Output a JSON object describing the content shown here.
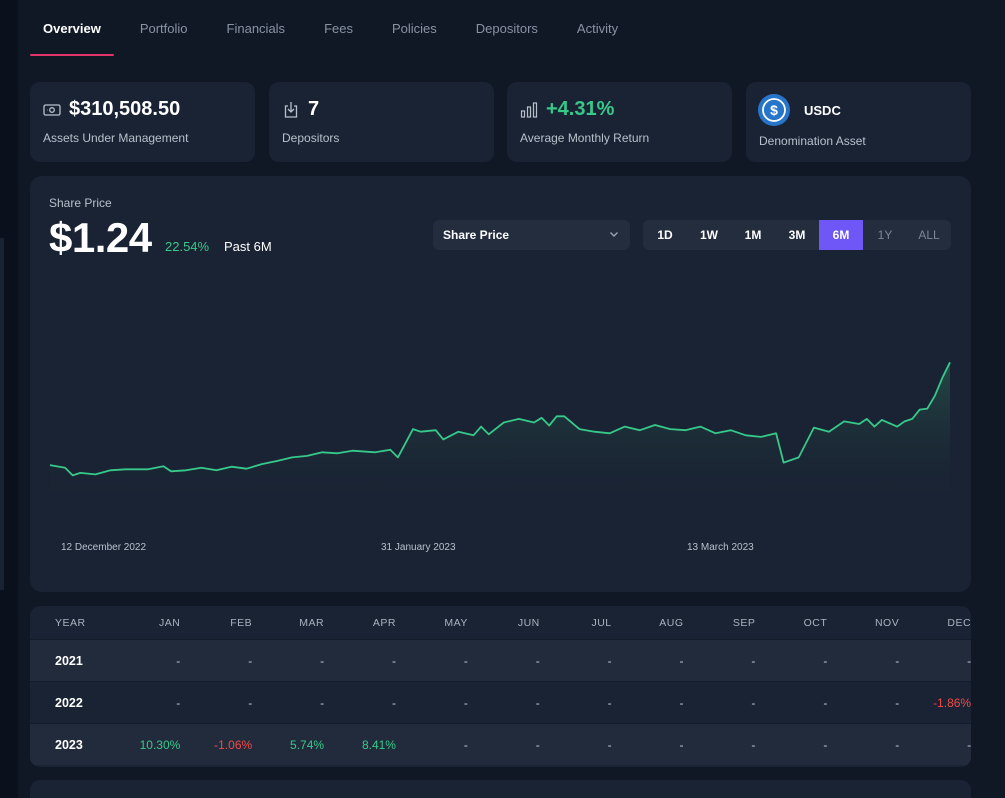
{
  "tabs": [
    {
      "label": "Overview",
      "active": true
    },
    {
      "label": "Portfolio",
      "active": false
    },
    {
      "label": "Financials",
      "active": false
    },
    {
      "label": "Fees",
      "active": false
    },
    {
      "label": "Policies",
      "active": false
    },
    {
      "label": "Depositors",
      "active": false
    },
    {
      "label": "Activity",
      "active": false
    }
  ],
  "stats": {
    "aum": {
      "value": "$310,508.50",
      "label": "Assets Under Management",
      "icon": "money-icon"
    },
    "depositors": {
      "value": "7",
      "label": "Depositors",
      "icon": "deposit-icon"
    },
    "monthly_return": {
      "value": "+4.31%",
      "label": "Average Monthly Return",
      "icon": "bar-chart-icon"
    },
    "denomination": {
      "value": "USDC",
      "label": "Denomination Asset",
      "icon": "usdc-logo"
    }
  },
  "share_price": {
    "label": "Share Price",
    "value": "$1.24",
    "change": "22.54%",
    "period": "Past 6M",
    "metric_select": "Share Price",
    "ranges": [
      {
        "label": "1D",
        "state": "normal"
      },
      {
        "label": "1W",
        "state": "normal"
      },
      {
        "label": "1M",
        "state": "normal"
      },
      {
        "label": "3M",
        "state": "normal"
      },
      {
        "label": "6M",
        "state": "active"
      },
      {
        "label": "1Y",
        "state": "dim"
      },
      {
        "label": "ALL",
        "state": "dim"
      }
    ]
  },
  "chart_data": {
    "type": "area",
    "title": "",
    "xlabel": "",
    "ylabel": "",
    "x_ticks": [
      "12 December 2022",
      "31 January 2023",
      "13 March 2023"
    ],
    "x_domain": [
      "2022-12-03",
      "2023-04-01"
    ],
    "y_range": [
      0.95,
      1.3
    ],
    "grid": false,
    "legend": "none",
    "colors": {
      "line": "#36c98a",
      "fill_top": "#2a6b55",
      "fill_bottom": "#1a2333"
    },
    "points": [
      [
        "2022-12-03",
        1.01
      ],
      [
        "2022-12-05",
        1.005
      ],
      [
        "2022-12-06",
        0.99
      ],
      [
        "2022-12-07",
        0.995
      ],
      [
        "2022-12-09",
        0.992
      ],
      [
        "2022-12-11",
        1.0
      ],
      [
        "2022-12-13",
        1.002
      ],
      [
        "2022-12-16",
        1.002
      ],
      [
        "2022-12-18",
        1.008
      ],
      [
        "2022-12-19",
        0.998
      ],
      [
        "2022-12-21",
        1.0
      ],
      [
        "2022-12-23",
        1.005
      ],
      [
        "2022-12-25",
        1.0
      ],
      [
        "2022-12-27",
        1.007
      ],
      [
        "2022-12-29",
        1.003
      ],
      [
        "2022-12-31",
        1.012
      ],
      [
        "2023-01-02",
        1.018
      ],
      [
        "2023-01-04",
        1.025
      ],
      [
        "2023-01-06",
        1.028
      ],
      [
        "2023-01-08",
        1.035
      ],
      [
        "2023-01-10",
        1.033
      ],
      [
        "2023-01-12",
        1.038
      ],
      [
        "2023-01-15",
        1.035
      ],
      [
        "2023-01-17",
        1.04
      ],
      [
        "2023-01-18",
        1.025
      ],
      [
        "2023-01-20",
        1.08
      ],
      [
        "2023-01-21",
        1.075
      ],
      [
        "2023-01-23",
        1.078
      ],
      [
        "2023-01-24",
        1.06
      ],
      [
        "2023-01-26",
        1.075
      ],
      [
        "2023-01-28",
        1.068
      ],
      [
        "2023-01-29",
        1.085
      ],
      [
        "2023-01-30",
        1.07
      ],
      [
        "2023-02-01",
        1.093
      ],
      [
        "2023-02-03",
        1.1
      ],
      [
        "2023-02-05",
        1.093
      ],
      [
        "2023-02-06",
        1.102
      ],
      [
        "2023-02-07",
        1.087
      ],
      [
        "2023-02-08",
        1.105
      ],
      [
        "2023-02-09",
        1.105
      ],
      [
        "2023-02-11",
        1.08
      ],
      [
        "2023-02-13",
        1.075
      ],
      [
        "2023-02-15",
        1.072
      ],
      [
        "2023-02-17",
        1.085
      ],
      [
        "2023-02-19",
        1.078
      ],
      [
        "2023-02-21",
        1.088
      ],
      [
        "2023-02-23",
        1.08
      ],
      [
        "2023-02-25",
        1.078
      ],
      [
        "2023-02-27",
        1.085
      ],
      [
        "2023-03-01",
        1.072
      ],
      [
        "2023-03-03",
        1.078
      ],
      [
        "2023-03-05",
        1.068
      ],
      [
        "2023-03-07",
        1.065
      ],
      [
        "2023-03-09",
        1.072
      ],
      [
        "2023-03-10",
        1.015
      ],
      [
        "2023-03-12",
        1.025
      ],
      [
        "2023-03-14",
        1.083
      ],
      [
        "2023-03-16",
        1.075
      ],
      [
        "2023-03-18",
        1.095
      ],
      [
        "2023-03-20",
        1.09
      ],
      [
        "2023-03-21",
        1.1
      ],
      [
        "2023-03-22",
        1.085
      ],
      [
        "2023-03-23",
        1.098
      ],
      [
        "2023-03-25",
        1.085
      ],
      [
        "2023-03-26",
        1.095
      ],
      [
        "2023-03-27",
        1.1
      ],
      [
        "2023-03-28",
        1.118
      ],
      [
        "2023-03-29",
        1.12
      ],
      [
        "2023-03-30",
        1.145
      ],
      [
        "2023-03-31",
        1.18
      ],
      [
        "2023-04-01",
        1.21
      ]
    ]
  },
  "returns_table": {
    "headers": [
      "YEAR",
      "JAN",
      "FEB",
      "MAR",
      "APR",
      "MAY",
      "JUN",
      "JUL",
      "AUG",
      "SEP",
      "OCT",
      "NOV",
      "DEC"
    ],
    "rows": [
      {
        "year": "2021",
        "values": [
          "-",
          "-",
          "-",
          "-",
          "-",
          "-",
          "-",
          "-",
          "-",
          "-",
          "-",
          "-"
        ]
      },
      {
        "year": "2022",
        "values": [
          "-",
          "-",
          "-",
          "-",
          "-",
          "-",
          "-",
          "-",
          "-",
          "-",
          "-",
          "-1.86%"
        ]
      },
      {
        "year": "2023",
        "values": [
          "10.30%",
          "-1.06%",
          "5.74%",
          "8.41%",
          "-",
          "-",
          "-",
          "-",
          "-",
          "-",
          "-",
          "-"
        ]
      }
    ]
  }
}
